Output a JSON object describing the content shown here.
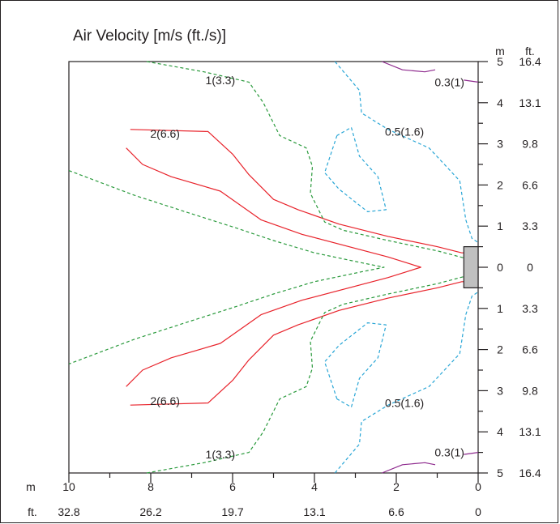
{
  "chart_data": {
    "type": "contour",
    "title": "Air Velocity [m/s (ft./s)]",
    "x_axis": {
      "position": "bottom",
      "range_m": [
        10,
        0
      ],
      "unit_m": "m",
      "unit_ft": "ft.",
      "ticks_m": [
        "10",
        "8",
        "6",
        "4",
        "2",
        "0"
      ],
      "ticks_ft": [
        "32.8",
        "26.2",
        "19.7",
        "13.1",
        "6.6",
        "0"
      ]
    },
    "y_axis": {
      "position": "right",
      "range_m": [
        -5,
        5
      ],
      "unit_m": "m",
      "unit_ft": "ft.",
      "ticks_m": [
        "5",
        "4",
        "3",
        "2",
        "1",
        "0",
        "1",
        "2",
        "3",
        "4",
        "5"
      ],
      "ticks_ft": [
        "16.4",
        "13.1",
        "9.8",
        "6.6",
        "3.3",
        "0",
        "3.3",
        "6.6",
        "9.8",
        "13.1",
        "16.4"
      ]
    },
    "colors": {
      "level_2": "#e8222a",
      "level_1": "#2a9a3c",
      "level_0_5": "#29a6d6",
      "level_0_3": "#8e2a8e",
      "unit": "#c0c0c0"
    },
    "contours": [
      {
        "level": "2(6.6)",
        "style": "solid",
        "color": "#e8222a",
        "lines": [
          [
            [
              8.5,
              3.35
            ],
            [
              6.6,
              3.3
            ],
            [
              6.0,
              2.75
            ],
            [
              5.6,
              2.25
            ],
            [
              5.0,
              1.65
            ],
            [
              4.4,
              1.4
            ],
            [
              3.4,
              1.05
            ],
            [
              2.2,
              0.75
            ],
            [
              1.0,
              0.5
            ],
            [
              0.4,
              0.35
            ],
            [
              0,
              0.35
            ]
          ],
          [
            [
              8.6,
              2.9
            ],
            [
              8.2,
              2.5
            ],
            [
              7.5,
              2.2
            ],
            [
              6.3,
              1.85
            ],
            [
              5.3,
              1.15
            ],
            [
              4.3,
              0.8
            ],
            [
              2.2,
              0.25
            ],
            [
              1.4,
              0.0
            ],
            [
              2.2,
              -0.25
            ],
            [
              4.3,
              -0.8
            ],
            [
              5.3,
              -1.15
            ],
            [
              6.3,
              -1.85
            ],
            [
              7.5,
              -2.2
            ],
            [
              8.2,
              -2.5
            ],
            [
              8.6,
              -2.9
            ]
          ],
          [
            [
              8.5,
              -3.35
            ],
            [
              6.6,
              -3.3
            ],
            [
              6.0,
              -2.75
            ],
            [
              5.6,
              -2.25
            ],
            [
              5.0,
              -1.65
            ],
            [
              4.4,
              -1.4
            ],
            [
              3.4,
              -1.05
            ],
            [
              2.2,
              -0.75
            ],
            [
              1.0,
              -0.5
            ],
            [
              0.4,
              -0.35
            ],
            [
              0,
              -0.35
            ]
          ]
        ],
        "labels": [
          {
            "text": "2(6.6)",
            "x": 7.65,
            "y": 3.25
          },
          {
            "text": "2(6.6)",
            "x": 7.65,
            "y": -3.25
          }
        ]
      },
      {
        "level": "1(3.3)",
        "style": "dashed",
        "color": "#2a9a3c",
        "lines": [
          [
            [
              10,
              2.35
            ],
            [
              8.4,
              1.75
            ],
            [
              7.0,
              1.3
            ],
            [
              5.9,
              0.95
            ],
            [
              5.0,
              0.65
            ],
            [
              4.0,
              0.35
            ],
            [
              2.8,
              0.1
            ],
            [
              2.3,
              0.0
            ],
            [
              2.8,
              -0.1
            ],
            [
              4.0,
              -0.35
            ],
            [
              5.0,
              -0.65
            ],
            [
              5.9,
              -0.95
            ],
            [
              7.0,
              -1.3
            ],
            [
              8.4,
              -1.75
            ],
            [
              10,
              -2.35
            ]
          ],
          [
            [
              8.1,
              5.0
            ],
            [
              6.7,
              4.75
            ],
            [
              5.6,
              4.5
            ],
            [
              5.25,
              4.0
            ],
            [
              4.85,
              3.2
            ],
            [
              4.2,
              2.9
            ],
            [
              4.05,
              2.45
            ],
            [
              4.1,
              1.8
            ],
            [
              3.75,
              1.1
            ],
            [
              3.3,
              0.9
            ],
            [
              2.2,
              0.65
            ],
            [
              1.0,
              0.4
            ],
            [
              0.25,
              0.2
            ],
            [
              0,
              0.2
            ]
          ],
          [
            [
              8.1,
              -5.0
            ],
            [
              6.7,
              -4.75
            ],
            [
              5.6,
              -4.5
            ],
            [
              5.25,
              -4.0
            ],
            [
              4.85,
              -3.2
            ],
            [
              4.2,
              -2.9
            ],
            [
              4.05,
              -2.45
            ],
            [
              4.1,
              -1.8
            ],
            [
              3.75,
              -1.1
            ],
            [
              3.3,
              -0.9
            ],
            [
              2.2,
              -0.65
            ],
            [
              1.0,
              -0.4
            ],
            [
              0.25,
              -0.2
            ],
            [
              0,
              -0.2
            ]
          ]
        ],
        "labels": [
          {
            "text": "1(3.3)",
            "x": 6.3,
            "y": 4.55
          },
          {
            "text": "1(3.3)",
            "x": 6.3,
            "y": -4.55
          }
        ]
      },
      {
        "level": "0.5(1.6)",
        "style": "dashed",
        "color": "#29a6d6",
        "lines": [
          [
            [
              3.45,
              3.2
            ],
            [
              3.75,
              2.3
            ],
            [
              3.4,
              1.9
            ],
            [
              2.7,
              1.35
            ],
            [
              2.25,
              1.4
            ],
            [
              2.45,
              2.2
            ],
            [
              2.9,
              2.7
            ],
            [
              3.1,
              3.4
            ],
            [
              3.45,
              3.2
            ]
          ],
          [
            [
              3.45,
              -3.2
            ],
            [
              3.75,
              -2.3
            ],
            [
              3.4,
              -1.9
            ],
            [
              2.7,
              -1.35
            ],
            [
              2.25,
              -1.4
            ],
            [
              2.45,
              -2.2
            ],
            [
              2.9,
              -2.7
            ],
            [
              3.1,
              -3.4
            ],
            [
              3.45,
              -3.2
            ]
          ],
          [
            [
              3.5,
              5.0
            ],
            [
              2.9,
              4.3
            ],
            [
              2.85,
              3.75
            ],
            [
              2.2,
              3.35
            ],
            [
              1.2,
              2.9
            ],
            [
              0.45,
              2.1
            ],
            [
              0.3,
              1.15
            ],
            [
              0.15,
              0.7
            ],
            [
              0,
              0.6
            ]
          ],
          [
            [
              3.5,
              -5.0
            ],
            [
              2.9,
              -4.3
            ],
            [
              2.85,
              -3.75
            ],
            [
              2.2,
              -3.35
            ],
            [
              1.2,
              -2.9
            ],
            [
              0.45,
              -2.1
            ],
            [
              0.3,
              -1.15
            ],
            [
              0.15,
              -0.7
            ],
            [
              0,
              -0.6
            ]
          ]
        ],
        "labels": [
          {
            "text": "0.5(1.6)",
            "x": 1.8,
            "y": 3.3
          },
          {
            "text": "0.5(1.6)",
            "x": 1.8,
            "y": -3.3
          }
        ]
      },
      {
        "level": "0.3(1)",
        "style": "solid",
        "color": "#8e2a8e",
        "lines": [
          [
            [
              2.35,
              5.0
            ],
            [
              1.85,
              4.8
            ],
            [
              1.3,
              4.75
            ],
            [
              1.05,
              4.8
            ]
          ],
          [
            [
              0.35,
              4.55
            ],
            [
              0,
              4.5
            ]
          ],
          [
            [
              2.35,
              -5.0
            ],
            [
              1.85,
              -4.8
            ],
            [
              1.3,
              -4.75
            ],
            [
              1.05,
              -4.8
            ]
          ],
          [
            [
              0.35,
              -4.55
            ],
            [
              0,
              -4.5
            ]
          ]
        ],
        "labels": [
          {
            "text": "0.3(1)",
            "x": 0.7,
            "y": 4.5
          },
          {
            "text": "0.3(1)",
            "x": 0.7,
            "y": -4.5
          }
        ]
      }
    ],
    "unit_box": {
      "x_range": [
        0,
        0.35
      ],
      "y_range": [
        -0.5,
        0.5
      ]
    }
  }
}
